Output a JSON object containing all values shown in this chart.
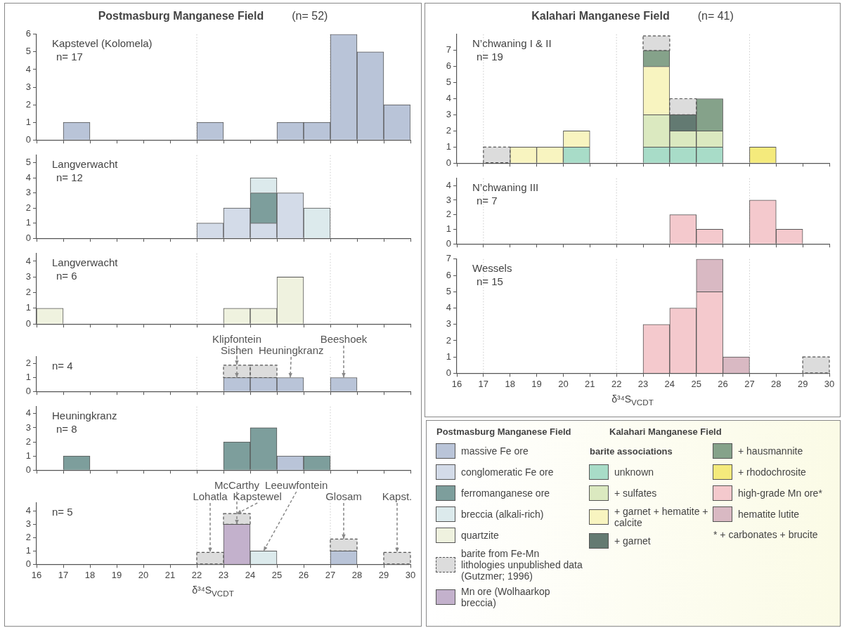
{
  "chart_data": [
    {
      "type": "bar",
      "title": "Postmasburg Manganese Field",
      "subtitle": "(n= 52)",
      "stacked": true,
      "legend": "bottom right",
      "x": [
        17.5,
        22.5,
        25.5,
        26.5,
        27.5,
        28.5,
        29.5
      ],
      "xlim": [
        16,
        30
      ],
      "xticks": [
        16,
        17,
        18,
        19,
        20,
        21,
        22,
        23,
        24,
        25,
        26,
        27,
        28,
        29,
        30
      ],
      "ylim": [
        0,
        6
      ],
      "yticks": [
        0,
        1,
        2,
        3,
        4,
        5,
        6
      ],
      "tick_labels": "y",
      "ref_lines": [
        {
          "axis": "x",
          "value": 22,
          "color": "#c8c8c8",
          "line_style": "dotted"
        },
        {
          "axis": "x",
          "value": 27,
          "color": "#c8c8c8",
          "line_style": "dotted"
        }
      ],
      "annotations": [
        "Kapstevel (Kolomela)",
        "n= 17"
      ],
      "series": [
        {
          "name": "massive Fe ore",
          "color": "#b9c4d8",
          "values": [
            1,
            1,
            1,
            1,
            6,
            5,
            2
          ]
        }
      ]
    },
    {
      "type": "bar",
      "stacked": true,
      "legend": "bottom right",
      "x": [
        22.5,
        23.5,
        24.5,
        25.5,
        26.5
      ],
      "xlim": [
        16,
        30
      ],
      "xticks": [
        16,
        17,
        18,
        19,
        20,
        21,
        22,
        23,
        24,
        25,
        26,
        27,
        28,
        29,
        30
      ],
      "ylim": [
        0,
        5.5
      ],
      "yticks": [
        0,
        1,
        2,
        3,
        4,
        5
      ],
      "tick_labels": "y",
      "ref_lines": [
        {
          "axis": "x",
          "value": 22,
          "color": "#c8c8c8",
          "line_style": "dotted"
        },
        {
          "axis": "x",
          "value": 27,
          "color": "#c8c8c8",
          "line_style": "dotted"
        }
      ],
      "annotations": [
        "Langverwacht",
        "n= 12"
      ],
      "series": [
        {
          "name": "conglomeratic Fe ore",
          "color": "#d3dbe8",
          "values": [
            1,
            2,
            1,
            3,
            null
          ]
        },
        {
          "name": "ferromanganese  ore",
          "color": "#7d9e9c",
          "values": [
            null,
            null,
            2,
            null,
            null
          ]
        },
        {
          "name": "breccia (alkali-rich)",
          "color": "#dceaec",
          "values": [
            null,
            null,
            1,
            null,
            2
          ]
        }
      ]
    },
    {
      "type": "bar",
      "stacked": true,
      "legend": "bottom right",
      "x": [
        16.5,
        23.5,
        24.5,
        25.5
      ],
      "xlim": [
        16,
        30
      ],
      "xticks": [
        16,
        17,
        18,
        19,
        20,
        21,
        22,
        23,
        24,
        25,
        26,
        27,
        28,
        29,
        30
      ],
      "ylim": [
        0,
        4.5
      ],
      "yticks": [
        0,
        1,
        2,
        3,
        4
      ],
      "tick_labels": "y",
      "ref_lines": [
        {
          "axis": "x",
          "value": 22,
          "color": "#c8c8c8",
          "line_style": "dotted"
        },
        {
          "axis": "x",
          "value": 27,
          "color": "#c8c8c8",
          "line_style": "dotted"
        }
      ],
      "annotations": [
        "Langverwacht",
        "n= 6"
      ],
      "series": [
        {
          "name": "quartzite",
          "color": "#eff2df",
          "values": [
            1,
            1,
            1,
            3
          ]
        }
      ]
    },
    {
      "type": "bar",
      "stacked": true,
      "legend": "bottom right",
      "x": [
        23.5,
        24.5,
        25.5,
        27.5
      ],
      "xlim": [
        16,
        30
      ],
      "xticks": [
        16,
        17,
        18,
        19,
        20,
        21,
        22,
        23,
        24,
        25,
        26,
        27,
        28,
        29,
        30
      ],
      "ylim": [
        0,
        2.5
      ],
      "yticks": [
        0,
        1,
        2
      ],
      "tick_labels": "y",
      "ref_lines": [
        {
          "axis": "x",
          "value": 22,
          "color": "#c8c8c8",
          "line_style": "dotted"
        },
        {
          "axis": "x",
          "value": 27,
          "color": "#c8c8c8",
          "line_style": "dotted"
        }
      ],
      "annotations": [
        "n= 4",
        {
          "text": "Sishen",
          "x": 23.5,
          "y": 1
        },
        {
          "text": "Klipfontein",
          "x": 23.5,
          "y": 1.9
        },
        {
          "text": "Heuningkranz",
          "x": 25.5,
          "y": 1
        },
        {
          "text": "Beeshoek",
          "x": 27.5,
          "y": 1
        }
      ],
      "series": [
        {
          "color": "#b9c4d8",
          "values": [
            1,
            1,
            1,
            1
          ]
        },
        {
          "name": "barite from Fe-Mn lithologies unpublished data (Gutzmer; 1996)",
          "color": "#dcdcdc",
          "line_style": "dashed",
          "values": [
            0.9,
            0.9,
            null,
            null
          ]
        }
      ]
    },
    {
      "type": "bar",
      "stacked": true,
      "x": [
        17.5,
        23.5,
        24.5,
        25.5,
        26.5
      ],
      "xlim": [
        16,
        30
      ],
      "xticks": [
        16,
        17,
        18,
        19,
        20,
        21,
        22,
        23,
        24,
        25,
        26,
        27,
        28,
        29,
        30
      ],
      "ylim": [
        0,
        4.5
      ],
      "yticks": [
        0,
        1,
        2,
        3,
        4
      ],
      "tick_labels": "y",
      "ref_lines": [
        {
          "axis": "x",
          "value": 22,
          "color": "#c8c8c8",
          "line_style": "dotted"
        },
        {
          "axis": "x",
          "value": 27,
          "color": "#c8c8c8",
          "line_style": "dotted"
        }
      ],
      "annotations": [
        "Heuningkranz",
        "n= 8"
      ],
      "series": [
        {
          "color": "#7d9e9c",
          "values": [
            1,
            2,
            3,
            null,
            1
          ]
        },
        {
          "color": "#b9c4d8",
          "values": [
            null,
            null,
            null,
            1,
            null
          ]
        }
      ]
    },
    {
      "type": "bar",
      "stacked": true,
      "legend": "bottom right",
      "x": [
        22.5,
        23.5,
        24.5,
        27.5,
        29.5
      ],
      "xlim": [
        16,
        30
      ],
      "xticks": [
        16,
        17,
        18,
        19,
        20,
        21,
        22,
        23,
        24,
        25,
        26,
        27,
        28,
        29,
        30
      ],
      "ylim": [
        0,
        4.6
      ],
      "yticks": [
        0,
        1,
        2,
        3,
        4
      ],
      "xlabel": "δ³⁴S$_{VCDT}$",
      "ref_lines": [
        {
          "axis": "x",
          "value": 22,
          "color": "#c8c8c8",
          "line_style": "dotted"
        },
        {
          "axis": "x",
          "value": 27,
          "color": "#c8c8c8",
          "line_style": "dotted"
        }
      ],
      "annotations": [
        "n= 5",
        {
          "text": "Lohatla",
          "x": 22.5,
          "y": 0.9
        },
        {
          "text": "McCarthy",
          "x": 23.5,
          "y": 3
        },
        {
          "text": "Kapstewel",
          "x": 23.5,
          "y": 3.8
        },
        {
          "text": "Leeuwfontein",
          "x": 24.5,
          "y": 1
        },
        {
          "text": "Glosam",
          "x": 27.5,
          "y": 1.9
        },
        {
          "text": "Kapst.",
          "x": 29.5,
          "y": 0.9
        }
      ],
      "series": [
        {
          "name": "Mn ore (Wolhaarkop breccia)",
          "color": "#c3b1cc",
          "values": [
            null,
            3,
            null,
            null,
            null
          ]
        },
        {
          "color": "#dceaec",
          "values": [
            null,
            null,
            1,
            null,
            null
          ]
        },
        {
          "color": "#b9c4d8",
          "values": [
            null,
            null,
            null,
            1,
            null
          ]
        },
        {
          "color": "#dcdcdc",
          "line_style": "dashed",
          "values": [
            0.9,
            0.8,
            null,
            0.9,
            0.9
          ]
        }
      ]
    },
    {
      "type": "bar",
      "title": "Kalahari Manganese Field",
      "subtitle": "(n= 41)",
      "stacked": true,
      "legend": "bottom",
      "x": [
        17.5,
        18.5,
        19.5,
        20.5,
        23.5,
        24.5,
        25.5,
        27.5
      ],
      "xlim": [
        16,
        30
      ],
      "xticks": [
        16,
        17,
        18,
        19,
        20,
        21,
        22,
        23,
        24,
        25,
        26,
        27,
        28,
        29,
        30
      ],
      "ylim": [
        0,
        8
      ],
      "yticks": [
        0,
        1,
        2,
        3,
        4,
        5,
        6,
        7
      ],
      "tick_labels": "y",
      "ref_lines": [
        {
          "axis": "x",
          "value": 17,
          "color": "#c8c8c8",
          "line_style": "dotted"
        },
        {
          "axis": "x",
          "value": 22,
          "color": "#c8c8c8",
          "line_style": "dotted"
        },
        {
          "axis": "x",
          "value": 27,
          "color": "#c8c8c8",
          "line_style": "dotted"
        }
      ],
      "annotations": [
        "N’chwaning I & II",
        "n= 19"
      ],
      "series": [
        {
          "name": "unknown",
          "color": "#a8dcc8",
          "values": [
            null,
            null,
            null,
            1,
            1,
            1,
            1,
            null
          ]
        },
        {
          "name": "+ sulfates",
          "color": "#dbe9c0",
          "values": [
            null,
            null,
            null,
            null,
            2,
            1,
            1,
            null
          ]
        },
        {
          "name": "+ garnet + hematite + calcite",
          "color": "#f8f4c0",
          "values": [
            null,
            1,
            1,
            1,
            3,
            null,
            null,
            null
          ]
        },
        {
          "name": "+ garnet",
          "color": "#637a72",
          "values": [
            null,
            null,
            null,
            null,
            null,
            1,
            null,
            null
          ]
        },
        {
          "name": "+ hausmannite",
          "color": "#85a28a",
          "values": [
            null,
            null,
            null,
            null,
            1,
            null,
            2,
            null
          ]
        },
        {
          "name": "+ rhodochrosite",
          "color": "#f4ea7c",
          "values": [
            null,
            null,
            null,
            null,
            null,
            null,
            null,
            1
          ]
        },
        {
          "color": "#dcdcdc",
          "line_style": "dashed",
          "values": [
            1,
            null,
            null,
            null,
            0.9,
            1,
            null,
            null
          ]
        }
      ]
    },
    {
      "type": "bar",
      "stacked": true,
      "legend": "bottom",
      "x": [
        24.5,
        25.5,
        27.5,
        28.5
      ],
      "xlim": [
        16,
        30
      ],
      "xticks": [
        16,
        17,
        18,
        19,
        20,
        21,
        22,
        23,
        24,
        25,
        26,
        27,
        28,
        29,
        30
      ],
      "ylim": [
        0,
        4.5
      ],
      "yticks": [
        0,
        1,
        2,
        3,
        4
      ],
      "tick_labels": "y",
      "ref_lines": [
        {
          "axis": "x",
          "value": 17,
          "color": "#c8c8c8",
          "line_style": "dotted"
        },
        {
          "axis": "x",
          "value": 22,
          "color": "#c8c8c8",
          "line_style": "dotted"
        },
        {
          "axis": "x",
          "value": 27,
          "color": "#c8c8c8",
          "line_style": "dotted"
        }
      ],
      "annotations": [
        "N’chwaning III",
        "n= 7"
      ],
      "series": [
        {
          "name": "high-grade Mn ore*",
          "color": "#f4c9cd",
          "values": [
            2,
            1,
            3,
            1
          ]
        }
      ]
    },
    {
      "type": "bar",
      "stacked": true,
      "legend": "bottom",
      "x": [
        23.5,
        24.5,
        25.5,
        26.5,
        29.5
      ],
      "xlim": [
        16,
        30
      ],
      "xticks": [
        16,
        17,
        18,
        19,
        20,
        21,
        22,
        23,
        24,
        25,
        26,
        27,
        28,
        29,
        30
      ],
      "ylim": [
        0,
        7
      ],
      "yticks": [
        0,
        1,
        2,
        3,
        4,
        5,
        6,
        7
      ],
      "xlabel": "δ³⁴S$_{VCDT}$",
      "ref_lines": [
        {
          "axis": "x",
          "value": 17,
          "color": "#c8c8c8",
          "line_style": "dotted"
        },
        {
          "axis": "x",
          "value": 22,
          "color": "#c8c8c8",
          "line_style": "dotted"
        },
        {
          "axis": "x",
          "value": 27,
          "color": "#c8c8c8",
          "line_style": "dotted"
        }
      ],
      "annotations": [
        "Wessels",
        "n= 15"
      ],
      "series": [
        {
          "color": "#f4c9cd",
          "values": [
            3,
            4,
            5,
            null,
            null
          ]
        },
        {
          "name": "hematite lutite",
          "color": "#d9b9c3",
          "values": [
            null,
            null,
            2,
            1,
            null
          ]
        },
        {
          "color": "#dcdcdc",
          "line_style": "dashed",
          "values": [
            null,
            null,
            null,
            null,
            1
          ]
        }
      ]
    },
    {
      "type": "other",
      "annotations": [
        "Postmasburg Manganese Field",
        "Kalahari Manganese Field",
        "barite associations",
        "* + carbonates + brucite"
      ]
    }
  ]
}
